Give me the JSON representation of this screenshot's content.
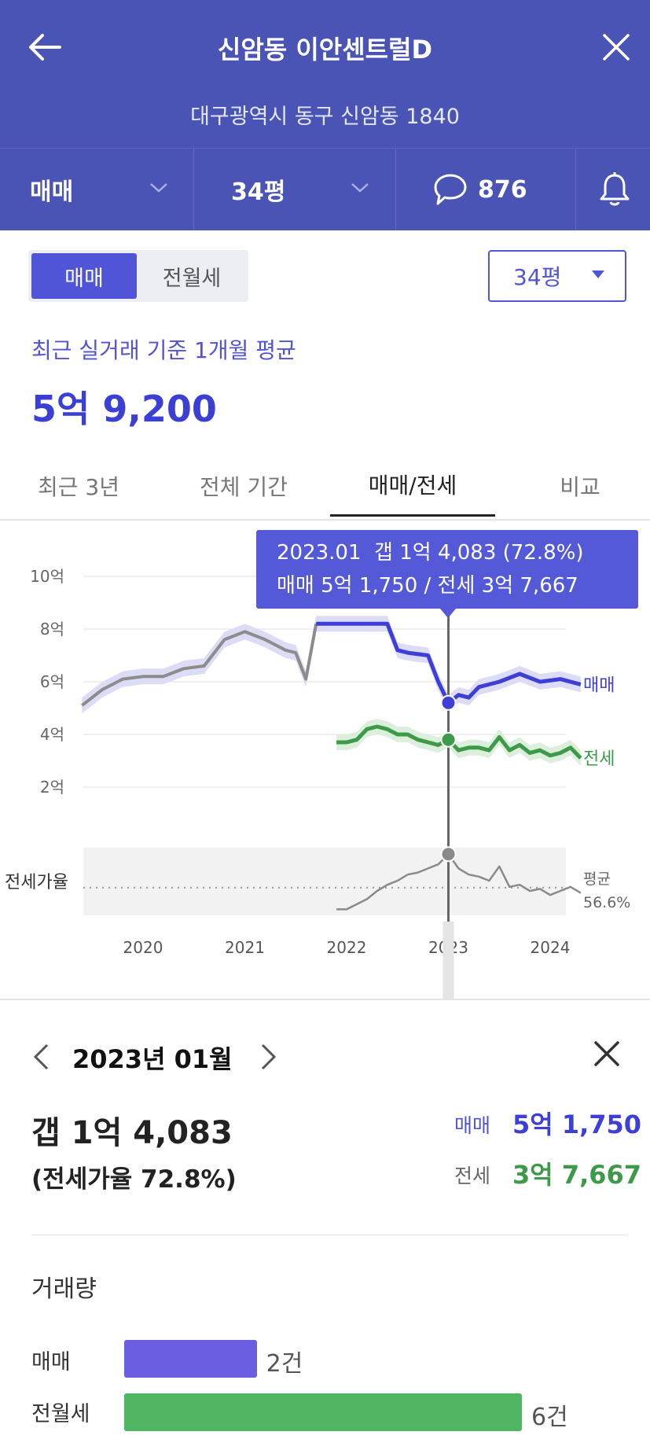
{
  "header": {
    "title": "신암동 이안센트럴D",
    "address": "대구광역시 동구 신암동 1840"
  },
  "filter_bar": {
    "trade_type": "매매",
    "size": "34평",
    "comment_count": "876"
  },
  "toggle": {
    "sale": "매매",
    "rent": "전월세"
  },
  "size_select": "34평",
  "average": {
    "label": "최근 실거래 기준 1개월 평균",
    "value": "5억 9,200"
  },
  "tabs": [
    "최근 3년",
    "전체 기간",
    "매매/전세",
    "비교"
  ],
  "active_tab": 2,
  "tooltip": {
    "line1": "2023.01  갭 1억 4,083 (72.8%)",
    "line2": "매매 5억 1,750 / 전세 3억 7,667"
  },
  "chart_data": {
    "type": "line",
    "y_ticks": [
      "10억",
      "8억",
      "6억",
      "4억",
      "2억"
    ],
    "x_ticks": [
      "2020",
      "2021",
      "2022",
      "2023",
      "2024"
    ],
    "ylim": [
      0,
      10
    ],
    "ratio_label": "전세가율",
    "ratio_avg_label": "평균",
    "ratio_avg_value": "56.6%",
    "ratio_avg": 56.6,
    "highlight_x": 2023.0,
    "series": [
      {
        "name": "매매",
        "color": "#3e3fd6",
        "x": [
          2019.4,
          2019.6,
          2019.8,
          2020.0,
          2020.2,
          2020.4,
          2020.6,
          2020.8,
          2021.0,
          2021.2,
          2021.4,
          2021.5,
          2021.6,
          2021.7,
          2021.8,
          2022.0,
          2022.2,
          2022.4,
          2022.5,
          2022.6,
          2022.8,
          2022.9,
          2023.0,
          2023.1,
          2023.2,
          2023.3,
          2023.5,
          2023.7,
          2023.9,
          2024.1,
          2024.3
        ],
        "y": [
          5.1,
          5.7,
          6.1,
          6.2,
          6.2,
          6.5,
          6.6,
          7.6,
          7.9,
          7.6,
          7.2,
          7.1,
          6.1,
          8.2,
          8.2,
          8.2,
          8.2,
          8.2,
          7.2,
          7.1,
          7.0,
          6.0,
          5.2,
          5.5,
          5.4,
          5.8,
          6.0,
          6.3,
          6.0,
          6.1,
          5.9
        ]
      },
      {
        "name": "전세",
        "color": "#3d9a48",
        "x": [
          2021.9,
          2022.0,
          2022.1,
          2022.2,
          2022.3,
          2022.4,
          2022.5,
          2022.6,
          2022.7,
          2022.8,
          2022.9,
          2023.0,
          2023.1,
          2023.2,
          2023.3,
          2023.4,
          2023.5,
          2023.6,
          2023.7,
          2023.8,
          2023.9,
          2024.0,
          2024.1,
          2024.2,
          2024.3
        ],
        "y": [
          3.7,
          3.7,
          3.8,
          4.2,
          4.3,
          4.2,
          4.0,
          4.0,
          3.8,
          3.7,
          3.6,
          3.8,
          3.4,
          3.5,
          3.5,
          3.4,
          3.9,
          3.4,
          3.6,
          3.3,
          3.4,
          3.2,
          3.3,
          3.5,
          3.1
        ]
      },
      {
        "name": "전세가율",
        "color": "#8a8a8a",
        "x": [
          2021.9,
          2022.0,
          2022.2,
          2022.3,
          2022.4,
          2022.5,
          2022.6,
          2022.7,
          2022.8,
          2022.9,
          2023.0,
          2023.1,
          2023.2,
          2023.3,
          2023.4,
          2023.5,
          2023.6,
          2023.7,
          2023.8,
          2023.9,
          2024.0,
          2024.1,
          2024.2,
          2024.3
        ],
        "y": [
          46,
          46,
          51,
          55,
          58,
          60,
          63,
          64,
          66,
          68,
          73,
          66,
          63,
          62,
          60,
          67,
          57,
          58,
          55,
          56,
          53,
          55,
          57,
          54
        ]
      }
    ]
  },
  "detail": {
    "month": "2023년 01월",
    "gap": "갭 1억 4,083",
    "ratio": "(전세가율 72.8%)",
    "sale_label": "매매",
    "sale_value": "5억 1,750",
    "jeonse_label": "전세",
    "jeonse_value": "3억 7,667"
  },
  "volume": {
    "title": "거래량",
    "rows": [
      {
        "label": "매매",
        "count": "2건",
        "value": 2,
        "color": "#6a5fe0"
      },
      {
        "label": "전월세",
        "count": "6건",
        "value": 6,
        "color": "#4fb563"
      }
    ]
  },
  "colors": {
    "header_bg": "#4a54b4",
    "accent": "#4f55d6",
    "sale": "#3e3fd6",
    "jeonse": "#3d9a48",
    "ratio": "#8a8a8a"
  }
}
